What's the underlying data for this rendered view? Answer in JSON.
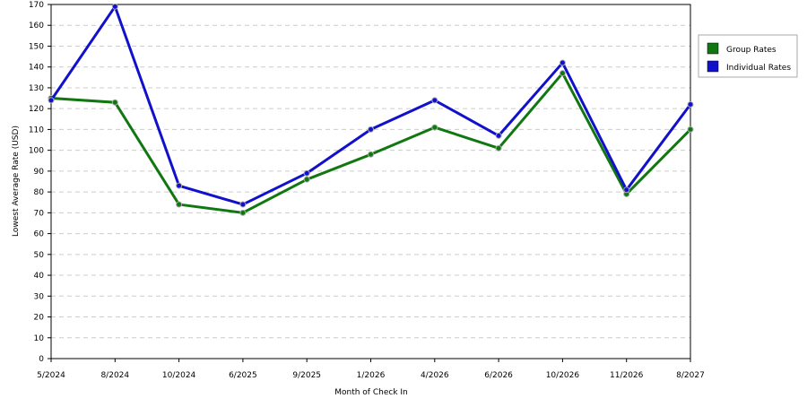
{
  "chart_data": {
    "type": "line",
    "x_label": "Month of Check In",
    "y_label": "Lowest Average Rate (USD)",
    "categories": [
      "5/2024",
      "8/2024",
      "10/2024",
      "6/2025",
      "9/2025",
      "1/2026",
      "4/2026",
      "6/2026",
      "10/2026",
      "11/2026",
      "8/2027"
    ],
    "series": [
      {
        "name": "Group Rates",
        "color": "#117711",
        "values": [
          125,
          123,
          74,
          70,
          86,
          98,
          111,
          101,
          137,
          79,
          110
        ]
      },
      {
        "name": "Individual Rates",
        "color": "#1111cc",
        "values": [
          124,
          169,
          83,
          74,
          89,
          110,
          124,
          107,
          142,
          81,
          122
        ]
      }
    ],
    "ylim": [
      0,
      170
    ],
    "yticks": [
      0,
      10,
      20,
      30,
      40,
      50,
      60,
      70,
      80,
      90,
      100,
      110,
      120,
      130,
      140,
      150,
      160,
      170
    ],
    "grid": true,
    "legend": "right"
  }
}
